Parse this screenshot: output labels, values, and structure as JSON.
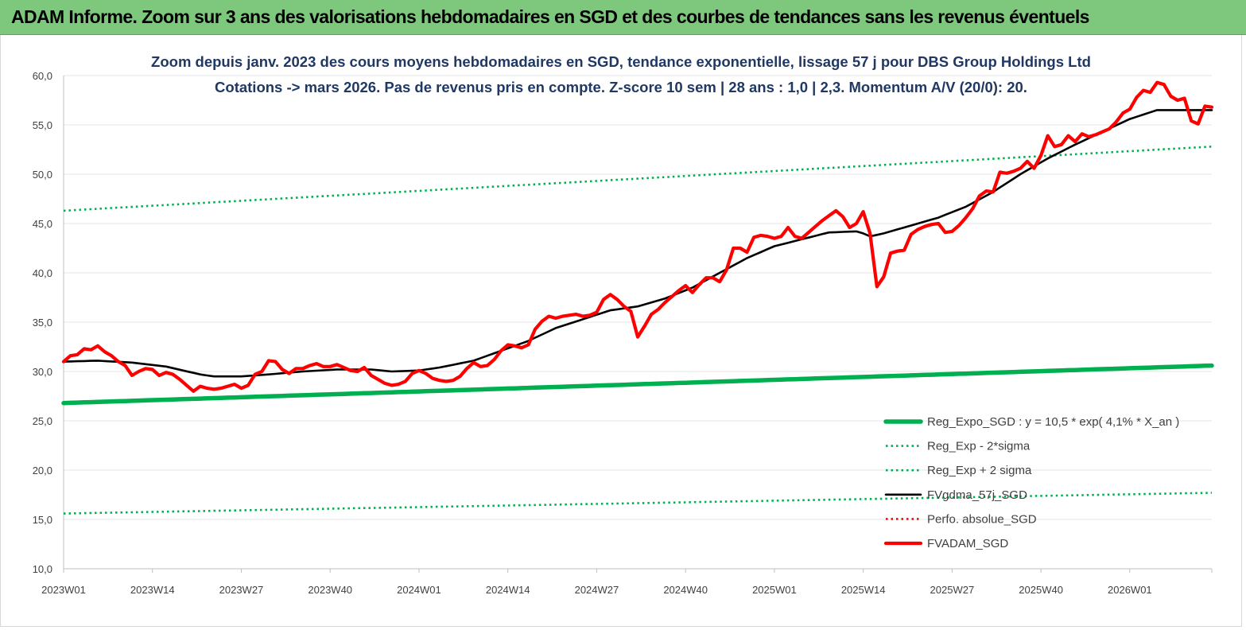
{
  "header": {
    "title": "ADAM Informe. Zoom sur 3 ans des valorisations hebdomadaires en SGD et des courbes de tendances sans les revenus éventuels"
  },
  "chart_data": {
    "type": "line",
    "title": [
      "Zoom depuis janv. 2023 des cours moyens hebdomadaires en SGD, tendance exponentielle, lissage 57 j pour DBS Group Holdings Ltd",
      "Cotations -> mars 2026. Pas de revenus pris en compte. Z-score 10 sem | 28 ans : 1,0 | 2,3. Momentum A/V (20/0): 20."
    ],
    "ylim": [
      10,
      60
    ],
    "y_ticks": [
      "10,0",
      "15,0",
      "20,0",
      "25,0",
      "30,0",
      "35,0",
      "40,0",
      "45,0",
      "50,0",
      "55,0",
      "60,0"
    ],
    "x_ticks": [
      "2023W01",
      "2023W14",
      "2023W27",
      "2023W40",
      "2024W01",
      "2024W14",
      "2024W27",
      "2024W40",
      "2025W01",
      "2025W14",
      "2025W27",
      "2025W40",
      "2026W01"
    ],
    "x_tick_index": [
      0,
      13,
      26,
      39,
      52,
      65,
      78,
      91,
      104,
      117,
      130,
      143,
      156
    ],
    "n_points": 169,
    "legend_position": "right",
    "series": [
      {
        "name": "Reg_Expo_SGD : y = 10,5 * exp( 4,1% *  X_an )",
        "color": "#00b050",
        "style": "solid-thick",
        "knots": [
          [
            0,
            26.8
          ],
          [
            168,
            30.6
          ]
        ]
      },
      {
        "name": "Reg_Exp - 2*sigma",
        "color": "#00b050",
        "style": "dotted",
        "knots": [
          [
            0,
            15.6
          ],
          [
            168,
            17.7
          ]
        ]
      },
      {
        "name": "Reg_Exp + 2 sigma",
        "color": "#00b050",
        "style": "dotted",
        "knots": [
          [
            0,
            46.3
          ],
          [
            168,
            52.8
          ]
        ]
      },
      {
        "name": "FVgdma_57j_SGD",
        "color": "#000000",
        "style": "solid",
        "knots": [
          [
            0,
            31.0
          ],
          [
            5,
            31.1
          ],
          [
            10,
            30.9
          ],
          [
            15,
            30.5
          ],
          [
            20,
            29.7
          ],
          [
            22,
            29.5
          ],
          [
            26,
            29.5
          ],
          [
            30,
            29.7
          ],
          [
            35,
            30.0
          ],
          [
            40,
            30.2
          ],
          [
            45,
            30.2
          ],
          [
            48,
            30.0
          ],
          [
            52,
            30.1
          ],
          [
            55,
            30.4
          ],
          [
            60,
            31.1
          ],
          [
            64,
            32.1
          ],
          [
            68,
            33.1
          ],
          [
            72,
            34.4
          ],
          [
            76,
            35.3
          ],
          [
            80,
            36.2
          ],
          [
            84,
            36.6
          ],
          [
            88,
            37.4
          ],
          [
            92,
            38.5
          ],
          [
            96,
            40.0
          ],
          [
            100,
            41.5
          ],
          [
            104,
            42.7
          ],
          [
            108,
            43.4
          ],
          [
            112,
            44.1
          ],
          [
            116,
            44.2
          ],
          [
            117,
            44.0
          ],
          [
            118,
            43.7
          ],
          [
            120,
            44.0
          ],
          [
            124,
            44.8
          ],
          [
            128,
            45.6
          ],
          [
            132,
            46.7
          ],
          [
            136,
            48.2
          ],
          [
            140,
            50.0
          ],
          [
            144,
            51.6
          ],
          [
            148,
            53.0
          ],
          [
            152,
            54.3
          ],
          [
            156,
            55.6
          ],
          [
            160,
            56.5
          ],
          [
            164,
            56.5
          ],
          [
            168,
            56.5
          ]
        ]
      },
      {
        "name": "Perfo. absolue_SGD",
        "color": "#ff0000",
        "style": "dotted",
        "knots": []
      },
      {
        "name": "FVADAM_SGD",
        "color": "#ff0000",
        "style": "solid-thick",
        "knots": [
          [
            0,
            31.0
          ],
          [
            1,
            31.6
          ],
          [
            2,
            31.7
          ],
          [
            3,
            32.3
          ],
          [
            4,
            32.2
          ],
          [
            5,
            32.6
          ],
          [
            6,
            32.0
          ],
          [
            7,
            31.6
          ],
          [
            8,
            31.0
          ],
          [
            9,
            30.6
          ],
          [
            10,
            29.6
          ],
          [
            11,
            30.0
          ],
          [
            12,
            30.3
          ],
          [
            13,
            30.2
          ],
          [
            14,
            29.6
          ],
          [
            15,
            29.9
          ],
          [
            16,
            29.7
          ],
          [
            17,
            29.2
          ],
          [
            18,
            28.6
          ],
          [
            19,
            28.0
          ],
          [
            20,
            28.5
          ],
          [
            21,
            28.3
          ],
          [
            22,
            28.2
          ],
          [
            23,
            28.3
          ],
          [
            24,
            28.5
          ],
          [
            25,
            28.7
          ],
          [
            26,
            28.3
          ],
          [
            27,
            28.6
          ],
          [
            28,
            29.7
          ],
          [
            29,
            30.0
          ],
          [
            30,
            31.1
          ],
          [
            31,
            31.0
          ],
          [
            32,
            30.2
          ],
          [
            33,
            29.8
          ],
          [
            34,
            30.3
          ],
          [
            35,
            30.3
          ],
          [
            36,
            30.6
          ],
          [
            37,
            30.8
          ],
          [
            38,
            30.5
          ],
          [
            39,
            30.5
          ],
          [
            40,
            30.7
          ],
          [
            41,
            30.4
          ],
          [
            42,
            30.1
          ],
          [
            43,
            30.0
          ],
          [
            44,
            30.4
          ],
          [
            45,
            29.6
          ],
          [
            46,
            29.2
          ],
          [
            47,
            28.8
          ],
          [
            48,
            28.6
          ],
          [
            49,
            28.7
          ],
          [
            50,
            29.0
          ],
          [
            51,
            29.8
          ],
          [
            52,
            30.1
          ],
          [
            53,
            29.8
          ],
          [
            54,
            29.3
          ],
          [
            55,
            29.1
          ],
          [
            56,
            29.0
          ],
          [
            57,
            29.1
          ],
          [
            58,
            29.5
          ],
          [
            59,
            30.3
          ],
          [
            60,
            30.9
          ],
          [
            61,
            30.5
          ],
          [
            62,
            30.6
          ],
          [
            63,
            31.2
          ],
          [
            64,
            32.1
          ],
          [
            65,
            32.7
          ],
          [
            66,
            32.6
          ],
          [
            67,
            32.4
          ],
          [
            68,
            32.7
          ],
          [
            69,
            34.3
          ],
          [
            70,
            35.1
          ],
          [
            71,
            35.6
          ],
          [
            72,
            35.4
          ],
          [
            73,
            35.6
          ],
          [
            74,
            35.7
          ],
          [
            75,
            35.8
          ],
          [
            76,
            35.6
          ],
          [
            77,
            35.7
          ],
          [
            78,
            36.0
          ],
          [
            79,
            37.3
          ],
          [
            80,
            37.8
          ],
          [
            81,
            37.3
          ],
          [
            82,
            36.6
          ],
          [
            83,
            36.1
          ],
          [
            84,
            33.5
          ],
          [
            85,
            34.6
          ],
          [
            86,
            35.8
          ],
          [
            87,
            36.3
          ],
          [
            88,
            37.0
          ],
          [
            89,
            37.6
          ],
          [
            90,
            38.2
          ],
          [
            91,
            38.7
          ],
          [
            92,
            38.0
          ],
          [
            93,
            38.8
          ],
          [
            94,
            39.5
          ],
          [
            95,
            39.5
          ],
          [
            96,
            39.1
          ],
          [
            97,
            40.3
          ],
          [
            98,
            42.5
          ],
          [
            99,
            42.5
          ],
          [
            100,
            42.1
          ],
          [
            101,
            43.6
          ],
          [
            102,
            43.8
          ],
          [
            103,
            43.7
          ],
          [
            104,
            43.5
          ],
          [
            105,
            43.7
          ],
          [
            106,
            44.6
          ],
          [
            107,
            43.7
          ],
          [
            108,
            43.5
          ],
          [
            109,
            44.1
          ],
          [
            110,
            44.7
          ],
          [
            111,
            45.3
          ],
          [
            112,
            45.8
          ],
          [
            113,
            46.3
          ],
          [
            114,
            45.7
          ],
          [
            115,
            44.6
          ],
          [
            116,
            45.0
          ],
          [
            117,
            46.2
          ],
          [
            118,
            44.0
          ],
          [
            119,
            38.6
          ],
          [
            120,
            39.6
          ],
          [
            121,
            42.0
          ],
          [
            122,
            42.2
          ],
          [
            123,
            42.3
          ],
          [
            124,
            43.9
          ],
          [
            125,
            44.4
          ],
          [
            126,
            44.7
          ],
          [
            127,
            44.9
          ],
          [
            128,
            45.0
          ],
          [
            129,
            44.1
          ],
          [
            130,
            44.2
          ],
          [
            131,
            44.8
          ],
          [
            132,
            45.6
          ],
          [
            133,
            46.5
          ],
          [
            134,
            47.8
          ],
          [
            135,
            48.3
          ],
          [
            136,
            48.2
          ],
          [
            137,
            50.2
          ],
          [
            138,
            50.1
          ],
          [
            139,
            50.3
          ],
          [
            140,
            50.6
          ],
          [
            141,
            51.3
          ],
          [
            142,
            50.6
          ],
          [
            143,
            51.9
          ],
          [
            144,
            53.9
          ],
          [
            145,
            52.8
          ],
          [
            146,
            53.0
          ],
          [
            147,
            53.9
          ],
          [
            148,
            53.3
          ],
          [
            149,
            54.1
          ],
          [
            150,
            53.8
          ],
          [
            151,
            54.0
          ],
          [
            152,
            54.3
          ],
          [
            153,
            54.6
          ],
          [
            154,
            55.3
          ],
          [
            155,
            56.2
          ],
          [
            156,
            56.6
          ],
          [
            157,
            57.8
          ],
          [
            158,
            58.5
          ],
          [
            159,
            58.3
          ],
          [
            160,
            59.3
          ],
          [
            161,
            59.1
          ],
          [
            162,
            57.9
          ],
          [
            163,
            57.5
          ],
          [
            164,
            57.7
          ],
          [
            165,
            55.4
          ],
          [
            166,
            55.1
          ],
          [
            167,
            56.9
          ],
          [
            168,
            56.8
          ]
        ]
      }
    ]
  }
}
